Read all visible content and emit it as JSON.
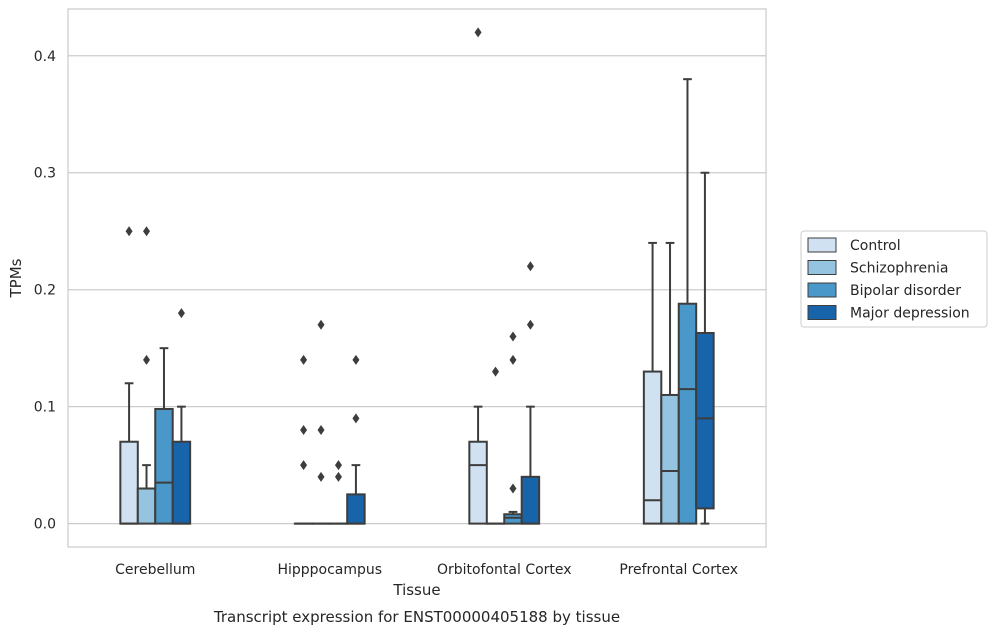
{
  "chart_data": {
    "type": "boxplot",
    "title": "Transcript expression for ENST00000405188 by tissue",
    "xlabel": "Tissue",
    "ylabel": "TPMs",
    "ylim": [
      -0.02,
      0.44
    ],
    "yticks": [
      0.0,
      0.1,
      0.2,
      0.3,
      0.4
    ],
    "ytick_labels": [
      "0.0",
      "0.1",
      "0.2",
      "0.3",
      "0.4"
    ],
    "grid": "horizontal",
    "legend_position": "right",
    "categories": [
      "Cerebellum",
      "Hipppocampus",
      "Orbitofontal Cortex",
      "Prefrontal Cortex"
    ],
    "series": [
      {
        "name": "Control",
        "color": "#d0e1f2",
        "boxes": [
          {
            "q1": 0.0,
            "median": 0.0,
            "q3": 0.07,
            "whisker_low": 0.0,
            "whisker_high": 0.12,
            "outliers": [
              0.25
            ]
          },
          {
            "q1": 0.0,
            "median": 0.0,
            "q3": 0.0,
            "whisker_low": 0.0,
            "whisker_high": 0.0,
            "outliers": [
              0.05,
              0.08,
              0.14
            ]
          },
          {
            "q1": 0.0,
            "median": 0.05,
            "q3": 0.07,
            "whisker_low": 0.0,
            "whisker_high": 0.1,
            "outliers": [
              0.42
            ]
          },
          {
            "q1": 0.0,
            "median": 0.02,
            "q3": 0.13,
            "whisker_low": 0.0,
            "whisker_high": 0.24,
            "outliers": []
          }
        ]
      },
      {
        "name": "Schizophrenia",
        "color": "#94c4df",
        "boxes": [
          {
            "q1": 0.0,
            "median": 0.03,
            "q3": 0.03,
            "whisker_low": 0.0,
            "whisker_high": 0.05,
            "outliers": [
              0.14,
              0.25
            ]
          },
          {
            "q1": 0.0,
            "median": 0.0,
            "q3": 0.0,
            "whisker_low": 0.0,
            "whisker_high": 0.0,
            "outliers": [
              0.04,
              0.08,
              0.17
            ]
          },
          {
            "q1": 0.0,
            "median": 0.0,
            "q3": 0.0,
            "whisker_low": 0.0,
            "whisker_high": 0.0,
            "outliers": [
              0.13
            ]
          },
          {
            "q1": 0.0,
            "median": 0.045,
            "q3": 0.11,
            "whisker_low": 0.0,
            "whisker_high": 0.24,
            "outliers": []
          }
        ]
      },
      {
        "name": "Bipolar disorder",
        "color": "#4a98c9",
        "boxes": [
          {
            "q1": 0.0,
            "median": 0.035,
            "q3": 0.098,
            "whisker_low": 0.0,
            "whisker_high": 0.15,
            "outliers": []
          },
          {
            "q1": 0.0,
            "median": 0.0,
            "q3": 0.0,
            "whisker_low": 0.0,
            "whisker_high": 0.0,
            "outliers": [
              0.04,
              0.05
            ]
          },
          {
            "q1": 0.0,
            "median": 0.005,
            "q3": 0.008,
            "whisker_low": 0.0,
            "whisker_high": 0.01,
            "outliers": [
              0.03,
              0.14,
              0.16
            ]
          },
          {
            "q1": 0.0,
            "median": 0.115,
            "q3": 0.188,
            "whisker_low": 0.0,
            "whisker_high": 0.38,
            "outliers": []
          }
        ]
      },
      {
        "name": "Major depression",
        "color": "#1764ab",
        "boxes": [
          {
            "q1": 0.0,
            "median": 0.0,
            "q3": 0.07,
            "whisker_low": 0.0,
            "whisker_high": 0.1,
            "outliers": [
              0.18
            ]
          },
          {
            "q1": 0.0,
            "median": 0.0,
            "q3": 0.025,
            "whisker_low": 0.0,
            "whisker_high": 0.05,
            "outliers": [
              0.09,
              0.14
            ]
          },
          {
            "q1": 0.0,
            "median": 0.0,
            "q3": 0.04,
            "whisker_low": 0.0,
            "whisker_high": 0.1,
            "outliers": [
              0.17,
              0.22
            ]
          },
          {
            "q1": 0.013,
            "median": 0.09,
            "q3": 0.163,
            "whisker_low": 0.0,
            "whisker_high": 0.3,
            "outliers": []
          }
        ]
      }
    ]
  }
}
